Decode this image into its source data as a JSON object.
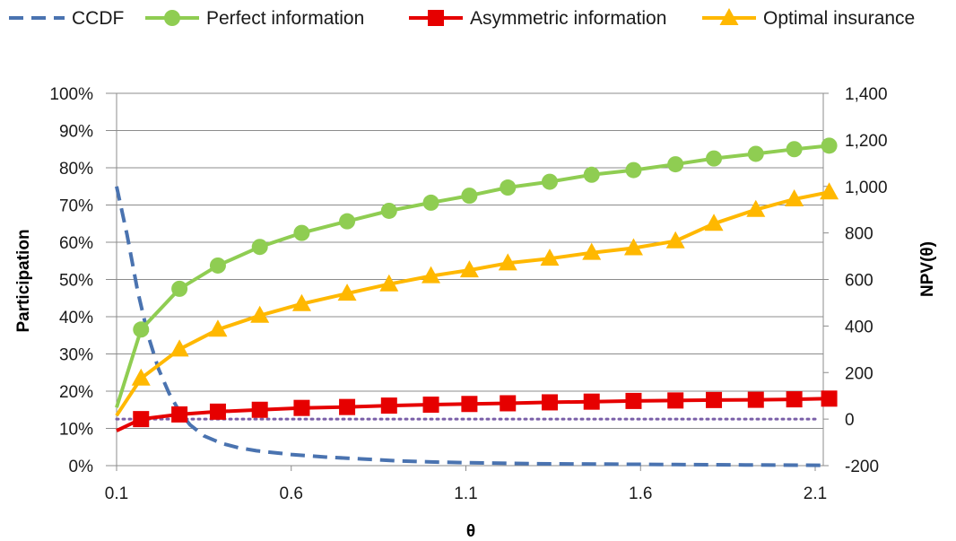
{
  "chart_data": {
    "type": "line",
    "title": "",
    "xlabel": "θ",
    "ylabel": "Participation",
    "y2label": "NPV(θ)",
    "xlim": [
      0.1,
      2.15
    ],
    "ylim": [
      0,
      100
    ],
    "y2lim": [
      -200,
      1400
    ],
    "xticks": [
      "0.1",
      "0.6",
      "1.1",
      "1.6",
      "2.1"
    ],
    "yticks": [
      "0%",
      "10%",
      "20%",
      "30%",
      "40%",
      "50%",
      "60%",
      "70%",
      "80%",
      "90%",
      "100%"
    ],
    "y2ticks": [
      "-200",
      "0",
      "200",
      "400",
      "600",
      "800",
      "1,000",
      "1,200",
      "1,400"
    ],
    "grid": true,
    "legend_position": "top",
    "reference_line": {
      "axis": "y2",
      "value": 0,
      "color": "#7a5fa8",
      "style": "dotted"
    },
    "series": [
      {
        "name": "CCDF",
        "axis": "y",
        "color": "#4a73b0",
        "style": "dashed",
        "marker": "none",
        "x": [
          0.1,
          0.13,
          0.16,
          0.19,
          0.22,
          0.25,
          0.28,
          0.31,
          0.35,
          0.4,
          0.45,
          0.5,
          0.6,
          0.7,
          0.8,
          0.9,
          1.0,
          1.1,
          1.3,
          1.5,
          1.7,
          1.9,
          2.12
        ],
        "y": [
          75,
          62,
          47,
          35,
          26,
          19.5,
          14.5,
          11,
          8,
          6,
          4.8,
          4,
          3,
          2.3,
          1.8,
          1.3,
          1,
          0.8,
          0.5,
          0.4,
          0.3,
          0.2,
          0.1
        ]
      },
      {
        "name": "Perfect information",
        "axis": "y2",
        "color": "#8fcd52",
        "style": "solid",
        "marker": "circle",
        "x": [
          0.1,
          0.17,
          0.28,
          0.39,
          0.51,
          0.63,
          0.76,
          0.88,
          1.0,
          1.11,
          1.22,
          1.34,
          1.46,
          1.58,
          1.7,
          1.81,
          1.93,
          2.04,
          2.14
        ],
        "y": [
          50,
          385,
          560,
          660,
          740,
          800,
          850,
          895,
          930,
          960,
          995,
          1020,
          1050,
          1070,
          1095,
          1120,
          1140,
          1160,
          1175
        ]
      },
      {
        "name": "Asymmetric information",
        "axis": "y2",
        "color": "#e60000",
        "style": "solid",
        "marker": "square",
        "x": [
          0.1,
          0.17,
          0.28,
          0.39,
          0.51,
          0.63,
          0.76,
          0.88,
          1.0,
          1.11,
          1.22,
          1.34,
          1.46,
          1.58,
          1.7,
          1.81,
          1.93,
          2.04,
          2.14
        ],
        "y": [
          -50,
          0,
          20,
          32,
          40,
          48,
          52,
          58,
          62,
          65,
          68,
          72,
          75,
          78,
          80,
          82,
          83,
          85,
          88
        ]
      },
      {
        "name": "Optimal insurance",
        "axis": "y2",
        "color": "#ffb800",
        "style": "solid",
        "marker": "triangle",
        "x": [
          0.1,
          0.17,
          0.28,
          0.39,
          0.51,
          0.63,
          0.76,
          0.88,
          1.0,
          1.11,
          1.22,
          1.34,
          1.46,
          1.58,
          1.7,
          1.81,
          1.93,
          2.04,
          2.14
        ],
        "y": [
          15,
          175,
          300,
          385,
          445,
          495,
          540,
          580,
          615,
          640,
          670,
          690,
          715,
          735,
          765,
          840,
          900,
          945,
          975
        ]
      }
    ]
  }
}
